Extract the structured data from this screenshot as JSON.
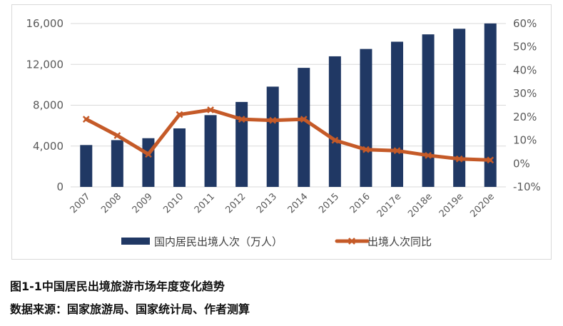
{
  "chart_data": {
    "type": "bar+line",
    "categories": [
      "2007",
      "2008",
      "2009",
      "2010",
      "2011",
      "2012",
      "2013",
      "2014",
      "2015",
      "2016",
      "2017e",
      "2018e",
      "2019e",
      "2020e"
    ],
    "series": [
      {
        "name": "国内居民出境人次（万人）",
        "type": "bar",
        "axis": "left",
        "values": [
          4100,
          4580,
          4770,
          5730,
          7030,
          8320,
          9820,
          11660,
          12790,
          13510,
          14220,
          14940,
          15490,
          16010
        ]
      },
      {
        "name": "出境人次同比",
        "type": "line",
        "axis": "right",
        "values": [
          19,
          12,
          4,
          21,
          23,
          19,
          18.5,
          19,
          10,
          6,
          5.5,
          3.5,
          2,
          1.5
        ]
      }
    ],
    "left_axis": {
      "ylim": [
        0,
        16000
      ],
      "ticks": [
        "0",
        "4,000",
        "8,000",
        "12,000",
        "16,000"
      ]
    },
    "right_axis": {
      "ylim": [
        -10,
        60
      ],
      "ticks": [
        "-10%",
        "0%",
        "10%",
        "20%",
        "30%",
        "40%",
        "50%",
        "60%"
      ]
    },
    "grid": "horizontal",
    "legend": "bottom",
    "colors": {
      "bar": "#203864",
      "line": "#c55a28",
      "grid": "#d9d9d9",
      "text": "#595959"
    }
  },
  "caption": {
    "title": "图1-1中国居民出境旅游市场年度变化趋势",
    "source": "数据来源：国家旅游局、国家统计局、作者测算"
  }
}
